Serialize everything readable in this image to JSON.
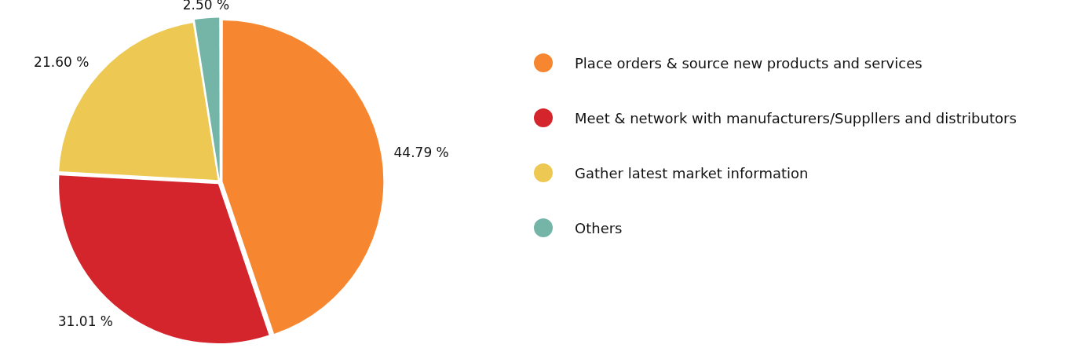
{
  "chart_data": {
    "type": "pie",
    "categories": [
      "Place orders & source new products and services",
      "Meet & network with manufacturers/Suppllers and distributors",
      "Gather latest market information",
      "Others"
    ],
    "values": [
      44.79,
      31.01,
      21.6,
      2.5
    ],
    "colors": [
      "#f78630",
      "#d4242c",
      "#edc954",
      "#74b5a8"
    ],
    "value_labels": [
      "44.79 %",
      "31.01 %",
      "21.60 %",
      "2.50 %"
    ],
    "legend": "right"
  }
}
